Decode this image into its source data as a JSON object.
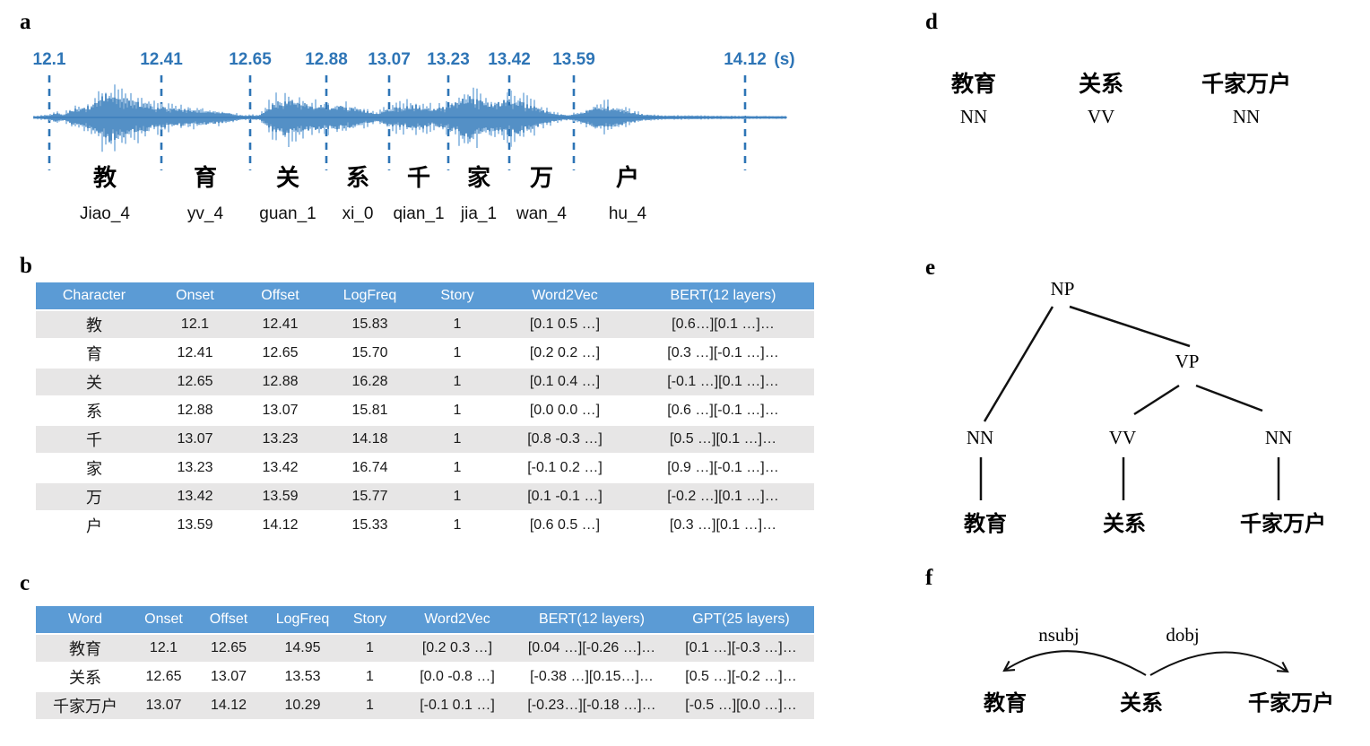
{
  "panel_labels": {
    "a": "a",
    "b": "b",
    "c": "c",
    "d": "d",
    "e": "e",
    "f": "f"
  },
  "colors": {
    "accent": "#2E75B6",
    "header_blue": "#5B9BD5",
    "stripe_gray": "#E7E6E6",
    "waveform_dark": "#2E75B6",
    "waveform_light": "#9CC2E5",
    "text": "#1A1A1A"
  },
  "panel_a": {
    "boundary_labels": [
      "12.1",
      "12.41",
      "12.65",
      "12.88",
      "13.07",
      "13.23",
      "13.42",
      "13.59",
      "14.12"
    ],
    "unit_label": "(s)",
    "characters": [
      {
        "char": "教",
        "pinyin": "Jiao_4"
      },
      {
        "char": "育",
        "pinyin": "yv_4"
      },
      {
        "char": "关",
        "pinyin": "guan_1"
      },
      {
        "char": "系",
        "pinyin": "xi_0"
      },
      {
        "char": "千",
        "pinyin": "qian_1"
      },
      {
        "char": "家",
        "pinyin": "jia_1"
      },
      {
        "char": "万",
        "pinyin": "wan_4"
      },
      {
        "char": "户",
        "pinyin": "hu_4"
      }
    ],
    "waveform_envelope_t_amp": [
      [
        12.06,
        0.02
      ],
      [
        12.1,
        0.06
      ],
      [
        12.12,
        0.16
      ],
      [
        12.14,
        0.08
      ],
      [
        12.17,
        0.3
      ],
      [
        12.22,
        0.45
      ],
      [
        12.26,
        0.95
      ],
      [
        12.3,
        0.85
      ],
      [
        12.35,
        0.62
      ],
      [
        12.42,
        0.4
      ],
      [
        12.5,
        0.3
      ],
      [
        12.58,
        0.22
      ],
      [
        12.63,
        0.12
      ],
      [
        12.66,
        0.05
      ],
      [
        12.71,
        0.06
      ],
      [
        12.75,
        0.55
      ],
      [
        12.79,
        0.72
      ],
      [
        12.84,
        0.55
      ],
      [
        12.88,
        0.48
      ],
      [
        12.93,
        0.45
      ],
      [
        12.98,
        0.38
      ],
      [
        13.02,
        0.25
      ],
      [
        13.05,
        0.12
      ],
      [
        13.09,
        0.35
      ],
      [
        13.13,
        0.4
      ],
      [
        13.17,
        0.5
      ],
      [
        13.21,
        0.32
      ],
      [
        13.25,
        0.4
      ],
      [
        13.29,
        0.7
      ],
      [
        13.32,
        0.85
      ],
      [
        13.36,
        0.6
      ],
      [
        13.4,
        0.58
      ],
      [
        13.44,
        0.75
      ],
      [
        13.48,
        0.55
      ],
      [
        13.53,
        0.3
      ],
      [
        13.57,
        0.12
      ],
      [
        13.61,
        0.05
      ],
      [
        13.65,
        0.2
      ],
      [
        13.69,
        0.42
      ],
      [
        13.73,
        0.4
      ],
      [
        13.78,
        0.22
      ],
      [
        13.82,
        0.1
      ],
      [
        13.88,
        0.04
      ],
      [
        14.0,
        0.03
      ],
      [
        14.16,
        0.02
      ]
    ]
  },
  "table_b": {
    "headers": [
      "Character",
      "Onset",
      "Offset",
      "LogFreq",
      "Story",
      "Word2Vec",
      "BERT(12 layers)"
    ],
    "rows": [
      [
        "教",
        "12.1",
        "12.41",
        "15.83",
        "1",
        "[0.1 0.5 …]",
        "[0.6…][0.1 …]…"
      ],
      [
        "育",
        "12.41",
        "12.65",
        "15.70",
        "1",
        "[0.2 0.2 …]",
        "[0.3 …][-0.1 …]…"
      ],
      [
        "关",
        "12.65",
        "12.88",
        "16.28",
        "1",
        "[0.1 0.4 …]",
        "[-0.1 …][0.1 …]…"
      ],
      [
        "系",
        "12.88",
        "13.07",
        "15.81",
        "1",
        "[0.0 0.0 …]",
        "[0.6 …][-0.1 …]…"
      ],
      [
        "千",
        "13.07",
        "13.23",
        "14.18",
        "1",
        "[0.8 -0.3 …]",
        "[0.5 …][0.1 …]…"
      ],
      [
        "家",
        "13.23",
        "13.42",
        "16.74",
        "1",
        "[-0.1 0.2 …]",
        "[0.9 …][-0.1 …]…"
      ],
      [
        "万",
        "13.42",
        "13.59",
        "15.77",
        "1",
        "[0.1 -0.1 …]",
        "[-0.2 …][0.1 …]…"
      ],
      [
        "户",
        "13.59",
        "14.12",
        "15.33",
        "1",
        "[0.6 0.5 …]",
        "[0.3 …][0.1 …]…"
      ]
    ]
  },
  "table_c": {
    "headers": [
      "Word",
      "Onset",
      "Offset",
      "LogFreq",
      "Story",
      "Word2Vec",
      "BERT(12 layers)",
      "GPT(25 layers)"
    ],
    "rows": [
      [
        "教育",
        "12.1",
        "12.65",
        "14.95",
        "1",
        "[0.2 0.3 …]",
        "[0.04 …][-0.26 …]…",
        "[0.1 …][-0.3 …]…"
      ],
      [
        "关系",
        "12.65",
        "13.07",
        "13.53",
        "1",
        "[0.0 -0.8 …]",
        "[-0.38 …][0.15…]…",
        "[0.5 …][-0.2 …]…"
      ],
      [
        "千家万户",
        "13.07",
        "14.12",
        "10.29",
        "1",
        "[-0.1 0.1 …]",
        "[-0.23…][-0.18 …]…",
        "[-0.5 …][0.0 …]…"
      ]
    ]
  },
  "panel_d": {
    "items": [
      {
        "word": "教育",
        "pos": "NN"
      },
      {
        "word": "关系",
        "pos": "VV"
      },
      {
        "word": "千家万户",
        "pos": "NN"
      }
    ]
  },
  "panel_e": {
    "root_label": "NP",
    "internal_label": "VP",
    "pos_labels": [
      "NN",
      "VV",
      "NN"
    ],
    "word_labels": [
      "教育",
      "关系",
      "千家万户"
    ]
  },
  "panel_f": {
    "arc_labels": [
      "nsubj",
      "dobj"
    ],
    "words": [
      "教育",
      "关系",
      "千家万户"
    ]
  }
}
